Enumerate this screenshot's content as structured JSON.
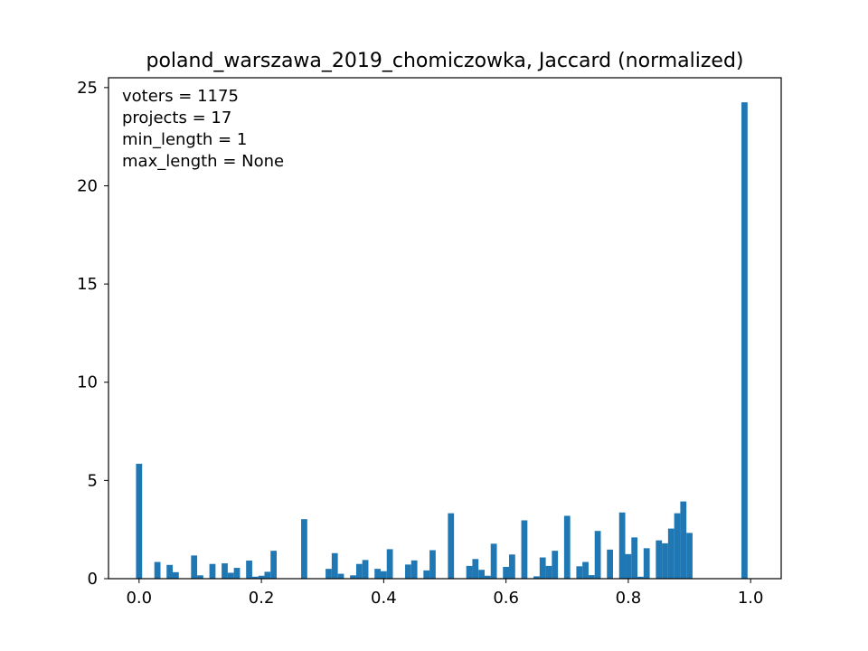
{
  "chart_data": {
    "type": "bar",
    "title": "poland_warszawa_2019_chomiczowka, Jaccard (normalized)",
    "xlabel": "",
    "ylabel": "",
    "xlim": [
      -0.05,
      1.05
    ],
    "ylim": [
      0,
      25.5
    ],
    "xticks": [
      0.0,
      0.2,
      0.4,
      0.6,
      0.8,
      1.0
    ],
    "xtick_labels": [
      "0.0",
      "0.2",
      "0.4",
      "0.6",
      "0.8",
      "1.0"
    ],
    "yticks": [
      0,
      5,
      10,
      15,
      20,
      25
    ],
    "ytick_labels": [
      "0",
      "5",
      "10",
      "15",
      "20",
      "25"
    ],
    "grid": false,
    "bar_color": "#1f77b4",
    "bin_width": 0.01,
    "annotations": [
      "voters = 1175",
      "projects = 17",
      "min_length = 1",
      "max_length = None"
    ],
    "x": [
      0.0,
      0.03,
      0.05,
      0.06,
      0.09,
      0.1,
      0.12,
      0.14,
      0.15,
      0.16,
      0.18,
      0.19,
      0.2,
      0.21,
      0.22,
      0.27,
      0.31,
      0.32,
      0.33,
      0.35,
      0.36,
      0.37,
      0.39,
      0.4,
      0.41,
      0.44,
      0.45,
      0.47,
      0.48,
      0.51,
      0.54,
      0.55,
      0.56,
      0.57,
      0.58,
      0.6,
      0.61,
      0.63,
      0.65,
      0.66,
      0.67,
      0.68,
      0.7,
      0.72,
      0.73,
      0.74,
      0.75,
      0.77,
      0.79,
      0.8,
      0.81,
      0.82,
      0.83,
      0.85,
      0.86,
      0.87,
      0.88,
      0.89,
      0.9,
      0.99
    ],
    "values": [
      5.85,
      0.85,
      0.7,
      0.33,
      1.18,
      0.17,
      0.75,
      0.78,
      0.3,
      0.55,
      0.92,
      0.1,
      0.15,
      0.35,
      1.42,
      3.03,
      0.5,
      1.3,
      0.25,
      0.17,
      0.75,
      0.95,
      0.5,
      0.38,
      1.5,
      0.72,
      0.93,
      0.42,
      1.45,
      3.33,
      0.65,
      1.0,
      0.45,
      0.15,
      1.78,
      0.6,
      1.23,
      2.97,
      0.12,
      1.08,
      0.65,
      1.42,
      3.2,
      0.63,
      0.85,
      0.18,
      2.43,
      1.48,
      3.37,
      1.25,
      2.1,
      0.1,
      1.55,
      1.95,
      1.8,
      2.55,
      3.33,
      3.93,
      2.33,
      24.25
    ]
  }
}
